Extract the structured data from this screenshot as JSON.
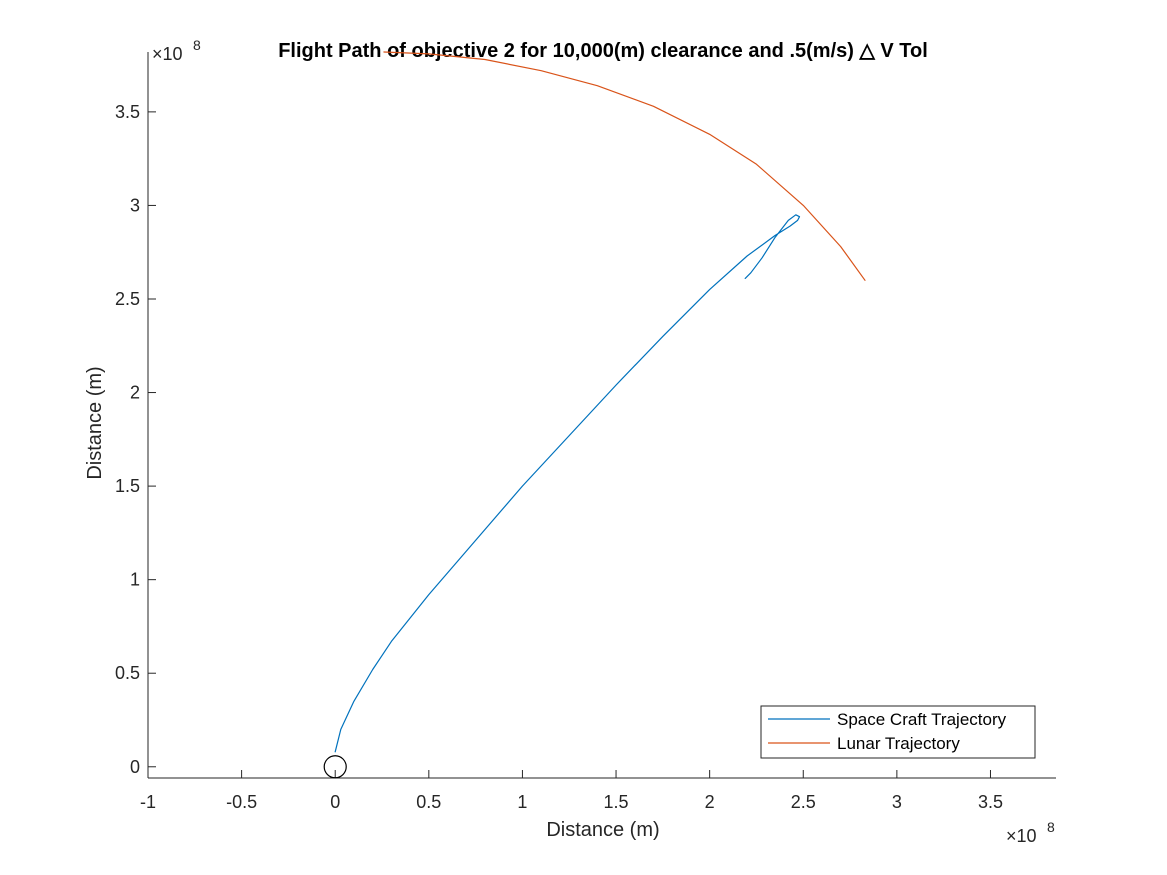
{
  "chart_data": {
    "type": "line",
    "title": "Flight Path of objective 2 for 10,000(m) clearance and .5(m/s) △ V Tol",
    "xlabel": "Distance (m)",
    "ylabel": "Distance (m)",
    "x_exponent": "×10",
    "x_exponent_power": "8",
    "y_exponent": "×10",
    "y_exponent_power": "8",
    "xlim": [
      -100000000.0,
      385000000.0
    ],
    "ylim": [
      -6000000.0,
      382000000.0
    ],
    "x_ticks": [
      -100000000.0,
      -50000000.0,
      0,
      50000000.0,
      100000000.0,
      150000000.0,
      200000000.0,
      250000000.0,
      300000000.0,
      350000000.0
    ],
    "x_tick_labels": [
      "-1",
      "-0.5",
      "0",
      "0.5",
      "1",
      "1.5",
      "2",
      "2.5",
      "3",
      "3.5"
    ],
    "y_ticks": [
      0,
      50000000.0,
      100000000.0,
      150000000.0,
      200000000.0,
      250000000.0,
      300000000.0,
      350000000.0
    ],
    "y_tick_labels": [
      "0",
      "0.5",
      "1",
      "1.5",
      "2",
      "2.5",
      "3",
      "3.5"
    ],
    "grid": false,
    "legend_position": "bottom-right",
    "series": [
      {
        "name": "Space Craft Trajectory",
        "color": "#0072BD",
        "x": [
          0.0,
          3000000.0,
          10000000.0,
          20000000.0,
          30000000.0,
          50000000.0,
          75000000.0,
          100000000.0,
          125000000.0,
          150000000.0,
          175000000.0,
          200000000.0,
          220000000.0,
          235000000.0,
          243000000.0,
          247000000.0,
          248000000.0,
          246000000.0,
          242000000.0,
          235000000.0,
          228000000.0,
          222000000.0,
          219000000.0
        ],
        "y": [
          8000000.0,
          20000000.0,
          35000000.0,
          52000000.0,
          67000000.0,
          92000000.0,
          121000000.0,
          150000000.0,
          177000000.0,
          204000000.0,
          230000000.0,
          255000000.0,
          273000000.0,
          284000000.0,
          289000000.0,
          292000000.0,
          294000000.0,
          295000000.0,
          292000000.0,
          283000000.0,
          272000000.0,
          264000000.0,
          261000000.0
        ]
      },
      {
        "name": "Lunar Trajectory",
        "color": "#D95319",
        "x": [
          26000000.0,
          50000000.0,
          80000000.0,
          110000000.0,
          140000000.0,
          170000000.0,
          200000000.0,
          225000000.0,
          250000000.0,
          270000000.0,
          283000000.0
        ],
        "y": [
          382000000.0,
          381000000.0,
          378000000.0,
          372000000.0,
          364000000.0,
          353000000.0,
          338000000.0,
          322000000.0,
          300000000.0,
          278000000.0,
          260000000.0
        ]
      }
    ],
    "markers": [
      {
        "name": "Earth",
        "type": "circle",
        "x": 0,
        "y": 0,
        "color": "#000000"
      }
    ]
  }
}
